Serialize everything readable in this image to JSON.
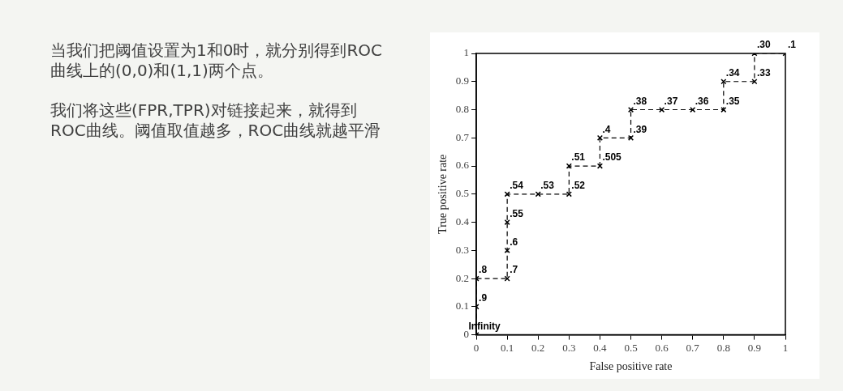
{
  "chart_data": {
    "type": "line",
    "xlabel": "False positive rate",
    "ylabel": "True positive rate",
    "x": [
      0,
      0,
      0,
      0.1,
      0.1,
      0.1,
      0.1,
      0.2,
      0.3,
      0.3,
      0.4,
      0.4,
      0.5,
      0.5,
      0.6,
      0.7,
      0.8,
      0.8,
      0.9,
      0.9,
      1
    ],
    "series": [
      {
        "color": "#000000",
        "values": [
          0,
          0.1,
          0.2,
          0.2,
          0.3,
          0.4,
          0.5,
          0.5,
          0.5,
          0.6,
          0.6,
          0.7,
          0.7,
          0.8,
          0.8,
          0.8,
          0.8,
          0.9,
          0.9,
          1,
          1
        ]
      }
    ],
    "xlim": [
      0,
      1
    ],
    "xticks": [
      0,
      0.1,
      0.2,
      0.3,
      0.4,
      0.5,
      0.6,
      0.7,
      0.8,
      0.9,
      1
    ],
    "ylim": [
      0,
      1
    ],
    "yticks": [
      0,
      0.1,
      0.2,
      0.3,
      0.4,
      0.5,
      0.6,
      0.7,
      0.8,
      0.9,
      1
    ],
    "grid": false,
    "legend": false,
    "marker": "cross",
    "line_style": "dashed",
    "annotations": [
      "当我们把阈值设置为1和0时，就分别得到ROC曲线上的(0,0)和(1,1)两个点。",
      "我们将这些(FPR,TPR)对链接起来，就得到ROC曲线。阈值取值越多，ROC曲线就越平滑",
      {
        "text": "Infinity",
        "x": 0,
        "y": 0
      },
      {
        "text": ".9",
        "x": 0,
        "y": 0.1
      },
      {
        "text": ".8",
        "x": 0,
        "y": 0.2
      },
      {
        "text": ".7",
        "x": 0.1,
        "y": 0.2
      },
      {
        "text": ".6",
        "x": 0.1,
        "y": 0.3
      },
      {
        "text": ".55",
        "x": 0.1,
        "y": 0.4
      },
      {
        "text": ".54",
        "x": 0.1,
        "y": 0.5
      },
      {
        "text": ".53",
        "x": 0.2,
        "y": 0.5
      },
      {
        "text": ".52",
        "x": 0.3,
        "y": 0.5
      },
      {
        "text": ".51",
        "x": 0.3,
        "y": 0.6
      },
      {
        "text": ".505",
        "x": 0.4,
        "y": 0.6
      },
      {
        "text": ".4",
        "x": 0.4,
        "y": 0.7
      },
      {
        "text": ".39",
        "x": 0.5,
        "y": 0.7
      },
      {
        "text": ".38",
        "x": 0.5,
        "y": 0.8
      },
      {
        "text": ".37",
        "x": 0.6,
        "y": 0.8
      },
      {
        "text": ".36",
        "x": 0.7,
        "y": 0.8
      },
      {
        "text": ".35",
        "x": 0.8,
        "y": 0.8
      },
      {
        "text": ".34",
        "x": 0.8,
        "y": 0.9
      },
      {
        "text": ".33",
        "x": 0.9,
        "y": 0.9
      },
      {
        "text": ".30",
        "x": 0.9,
        "y": 1
      },
      {
        "text": ".1",
        "x": 1,
        "y": 1
      }
    ]
  }
}
